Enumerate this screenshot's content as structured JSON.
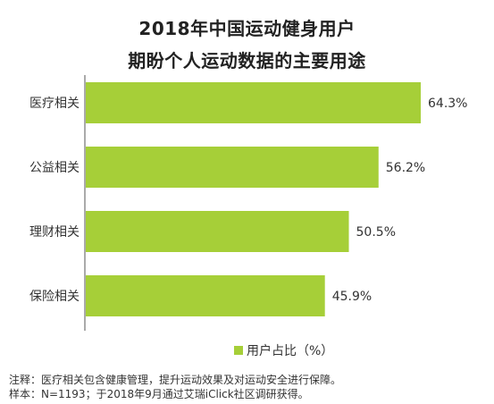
{
  "chart_data": {
    "type": "bar",
    "orientation": "horizontal",
    "title_lines": [
      "2018年中国运动健身用户",
      "期盼个人运动数据的主要用途"
    ],
    "categories": [
      "医疗相关",
      "公益相关",
      "理财相关",
      "保险相关"
    ],
    "values": [
      64.3,
      56.2,
      50.5,
      45.9
    ],
    "value_labels": [
      "64.3%",
      "56.2%",
      "50.5%",
      "45.9%"
    ],
    "series": [
      {
        "name": "用户占比（%）",
        "values": [
          64.3,
          56.2,
          50.5,
          45.9
        ]
      }
    ],
    "legend_position": "bottom",
    "grid": false,
    "bar_color": "#a6cf38",
    "xlim": [
      0,
      64.3
    ]
  },
  "notes": [
    "注释：医疗相关包含健康管理，提升运动效果及对运动安全进行保障。",
    "样本：N=1193；于2018年9月通过艾瑞iClick社区调研获得。"
  ]
}
